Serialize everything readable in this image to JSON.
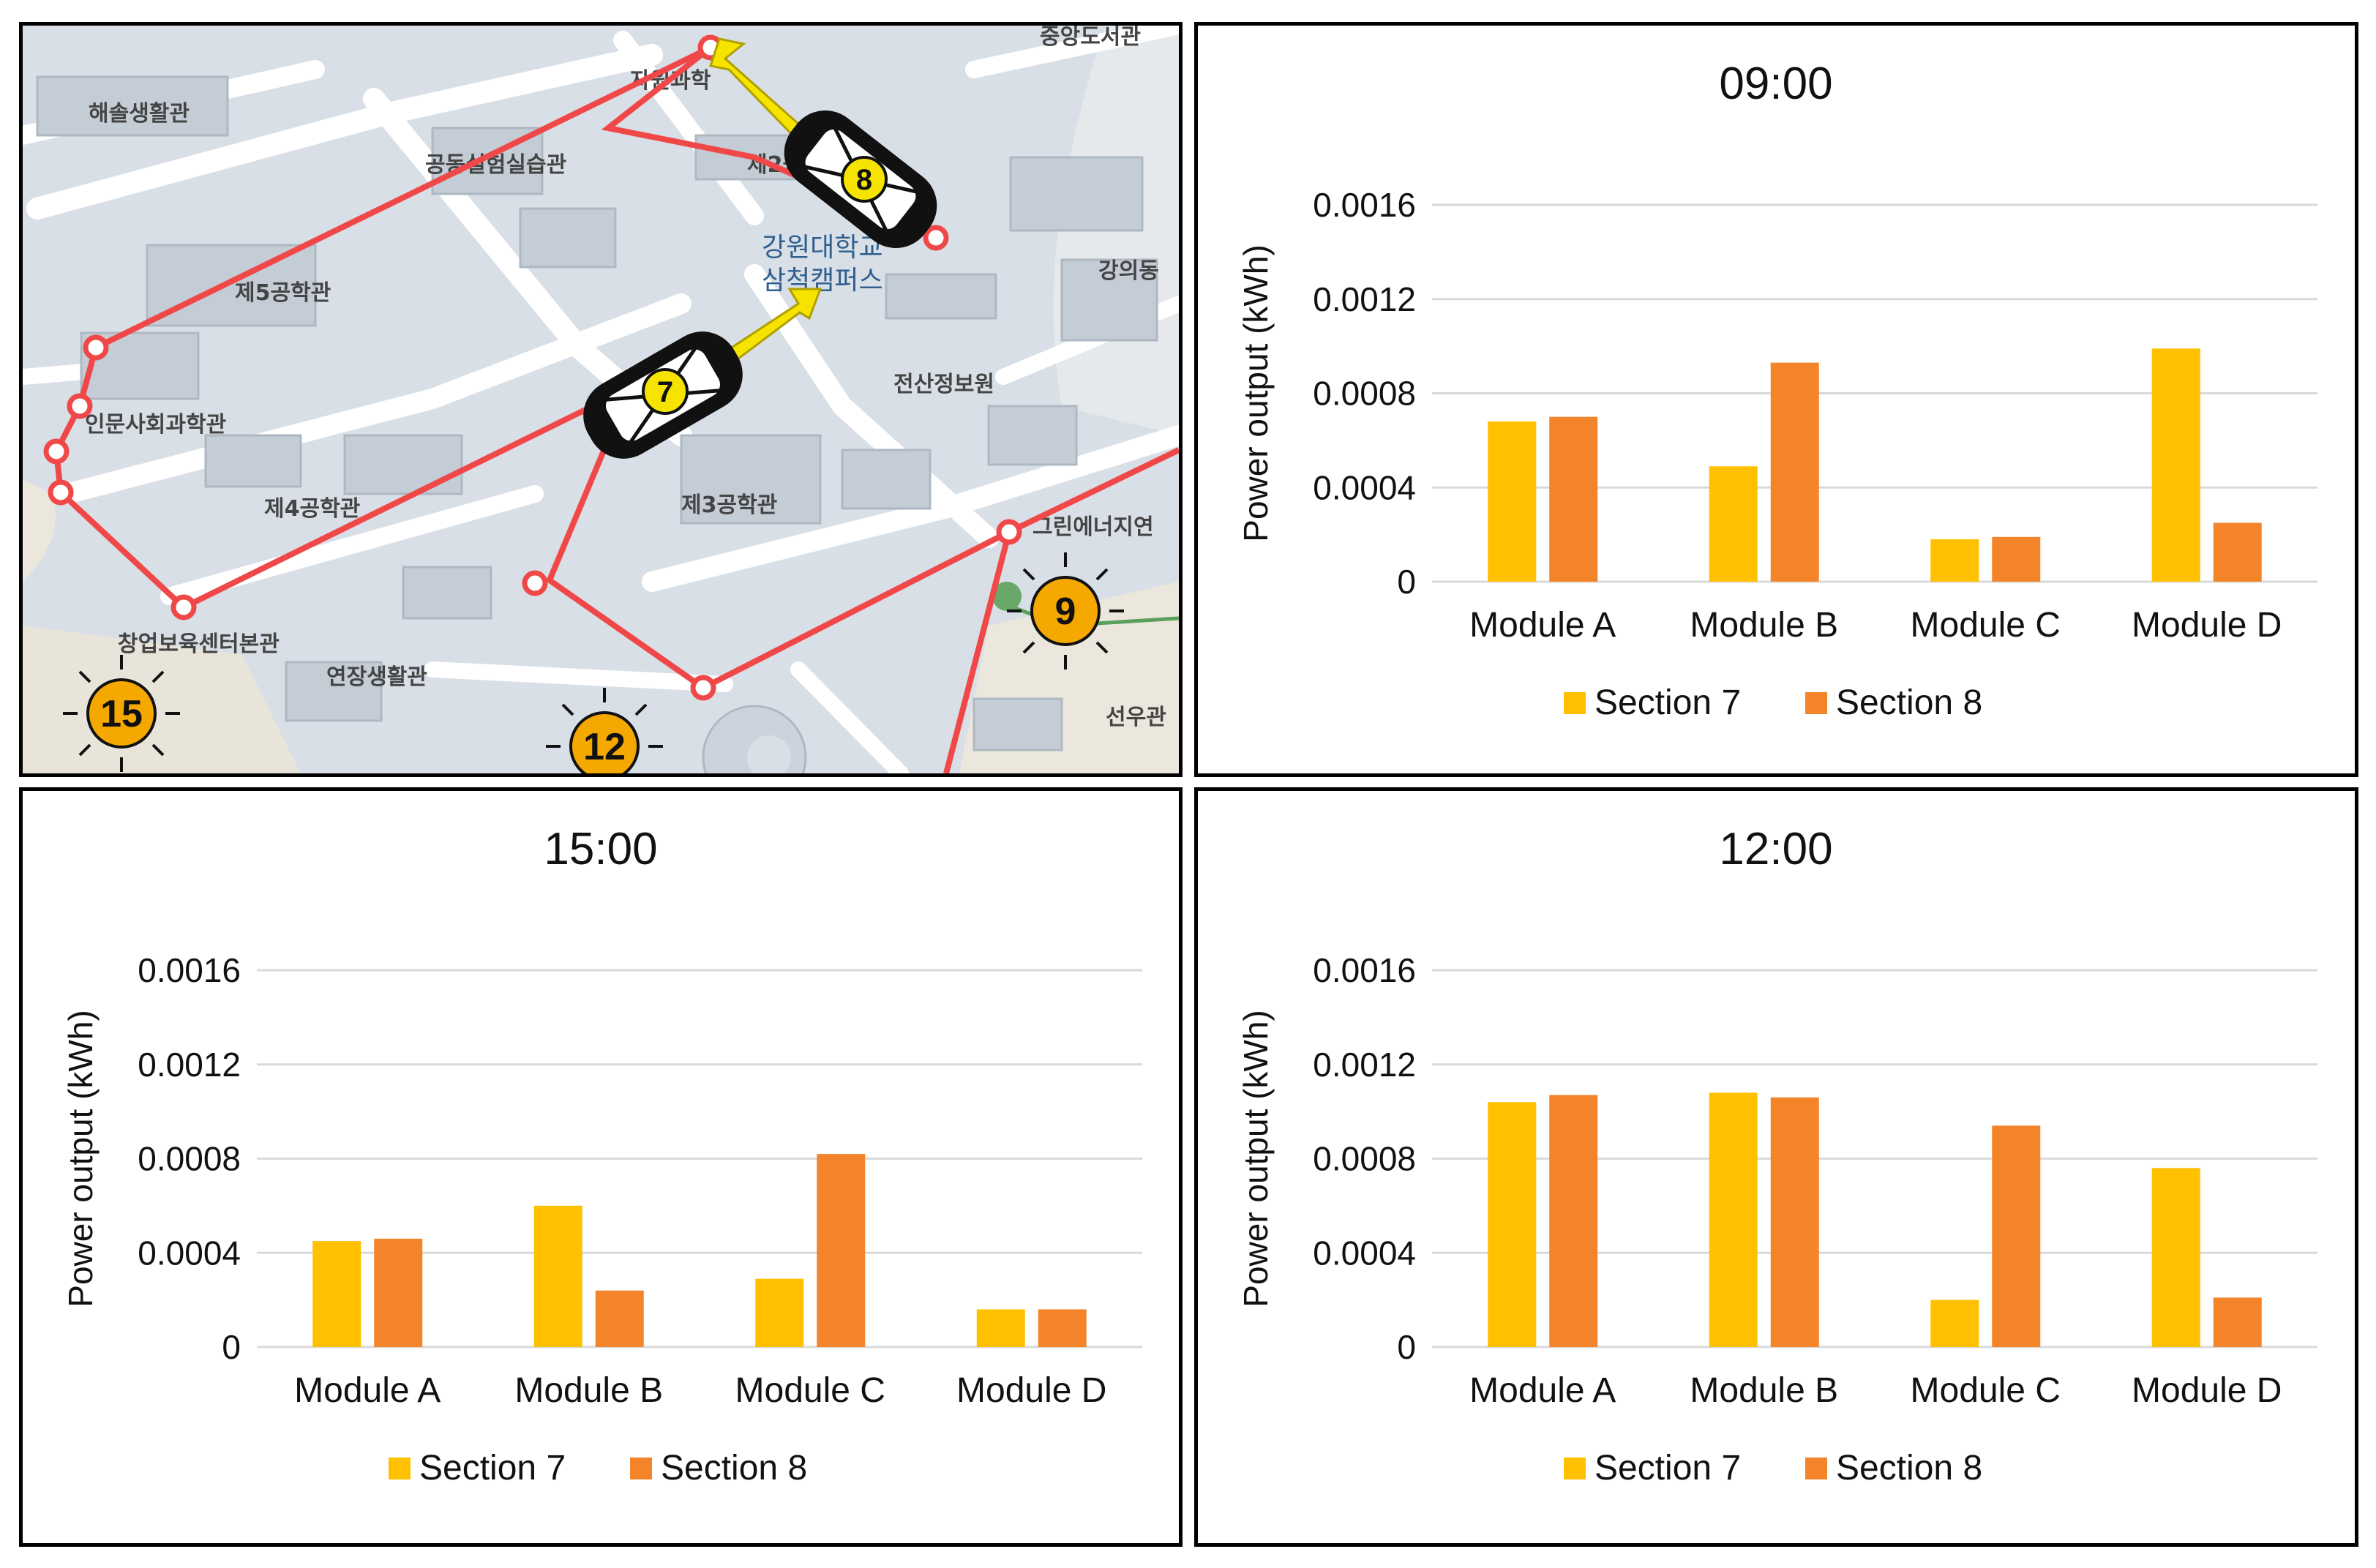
{
  "map": {
    "labels": {
      "haesol": "해솔생활관",
      "gongdong": "공동실험실습관",
      "jawon": "자원과학",
      "jungang": "중앙도서관",
      "je2": "제2공",
      "campus_line1": "강원대학교",
      "campus_line2": "삼척캠퍼스",
      "gangui": "강의동",
      "je5": "제5공학관",
      "inmun": "인문사회과학관",
      "jeonsan": "전산정보원",
      "je4": "제4공학관",
      "je3": "제3공학관",
      "green": "그린에너지연",
      "changup": "창업보육센터본관",
      "yeonjang": "연장생활관",
      "seonu": "선우관"
    },
    "vehicles": [
      {
        "label": "7"
      },
      {
        "label": "8"
      }
    ],
    "suns": [
      {
        "label": "9"
      },
      {
        "label": "12"
      },
      {
        "label": "15"
      }
    ],
    "colors": {
      "route": "#f04848",
      "vehicle_arrow": "#f6e400",
      "sun": "#f5a800"
    }
  },
  "charts": [
    {
      "id": "chart-09",
      "title": "09:00"
    },
    {
      "id": "chart-15",
      "title": "15:00"
    },
    {
      "id": "chart-12",
      "title": "12:00"
    }
  ],
  "chart_data": [
    {
      "type": "bar",
      "title": "09:00",
      "ylabel": "Power output (kWh)",
      "categories": [
        "Module A",
        "Module B",
        "Module C",
        "Module D"
      ],
      "yticks": [
        "0",
        "0.0004",
        "0.0008",
        "0.0012",
        "0.0016"
      ],
      "ylim": [
        0,
        0.0016
      ],
      "grid": true,
      "legend": "bottom",
      "series": [
        {
          "name": "Section 7",
          "color": "#ffc000",
          "values": [
            0.00068,
            0.00049,
            0.00018,
            0.00099
          ]
        },
        {
          "name": "Section 8",
          "color": "#f4842a",
          "values": [
            0.0007,
            0.00093,
            0.00019,
            0.00025
          ]
        }
      ]
    },
    {
      "type": "bar",
      "title": "15:00",
      "ylabel": "Power output (kWh)",
      "categories": [
        "Module A",
        "Module B",
        "Module C",
        "Module D"
      ],
      "yticks": [
        "0",
        "0.0004",
        "0.0008",
        "0.0012",
        "0.0016"
      ],
      "ylim": [
        0,
        0.0016
      ],
      "grid": true,
      "legend": "bottom",
      "series": [
        {
          "name": "Section 7",
          "color": "#ffc000",
          "values": [
            0.00045,
            0.0006,
            0.00029,
            0.00016
          ]
        },
        {
          "name": "Section 8",
          "color": "#f4842a",
          "values": [
            0.00046,
            0.00024,
            0.00082,
            0.00016
          ]
        }
      ]
    },
    {
      "type": "bar",
      "title": "12:00",
      "ylabel": "Power output (kWh)",
      "categories": [
        "Module A",
        "Module B",
        "Module C",
        "Module D"
      ],
      "yticks": [
        "0",
        "0.0004",
        "0.0008",
        "0.0012",
        "0.0016"
      ],
      "ylim": [
        0,
        0.0016
      ],
      "grid": true,
      "legend": "bottom",
      "series": [
        {
          "name": "Section 7",
          "color": "#ffc000",
          "values": [
            0.00104,
            0.00108,
            0.0002,
            0.00076
          ]
        },
        {
          "name": "Section 8",
          "color": "#f4842a",
          "values": [
            0.00107,
            0.00106,
            0.00094,
            0.00021
          ]
        }
      ]
    }
  ]
}
